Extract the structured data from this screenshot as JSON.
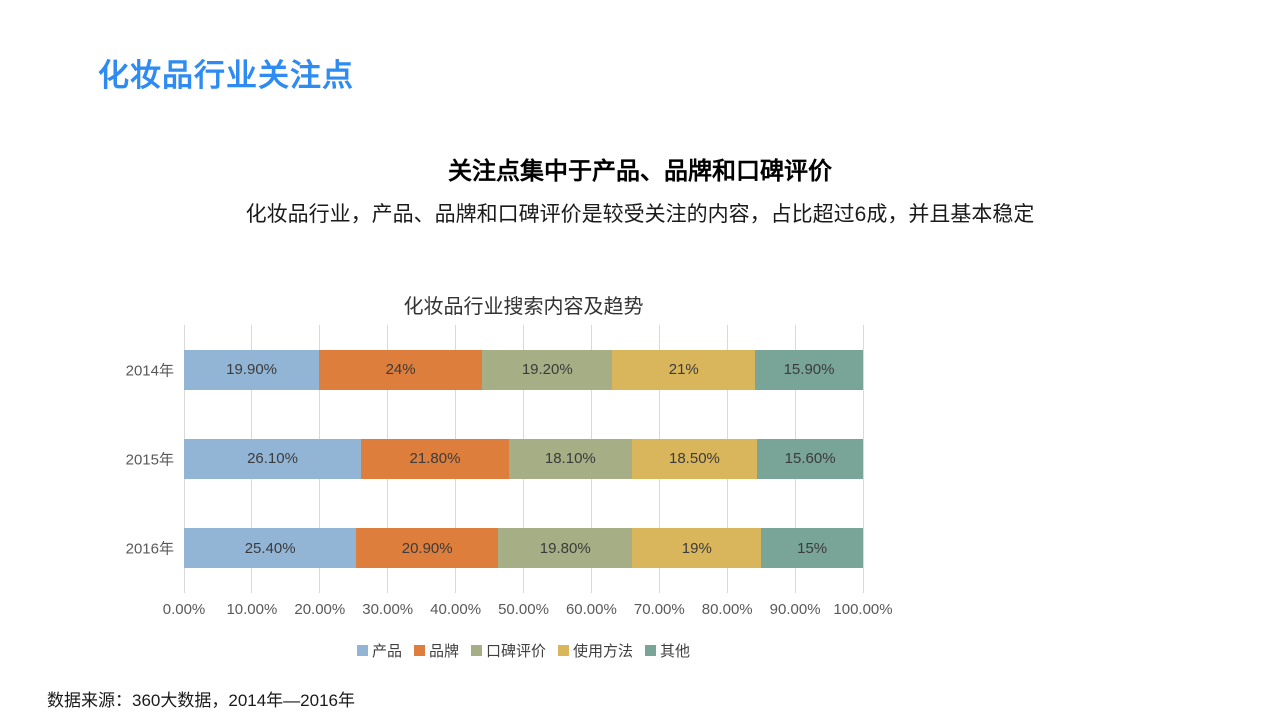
{
  "slide": {
    "title": "化妆品行业关注点",
    "heading": "关注点集中于产品、品牌和口碑评价",
    "subheading": "化妆品行业，产品、品牌和口碑评价是较受关注的内容，占比超过6成，并且基本稳定",
    "source_note": "数据来源：360大数据，2014年—2016年"
  },
  "colors": {
    "title_blue": "#2e8bf2",
    "gridline": "#d9d9d9",
    "axis_text": "#595959",
    "data_label_text": "#3b3b3b",
    "series": [
      "#93b5d5",
      "#de7e3c",
      "#a5ae84",
      "#d9b65c",
      "#79a498"
    ]
  },
  "chart_data": {
    "type": "bar",
    "orientation": "horizontal-stacked",
    "title": "化妆品行业搜索内容及趋势",
    "categories": [
      "2014年",
      "2015年",
      "2016年"
    ],
    "series": [
      {
        "name": "产品",
        "color": "#93b5d5",
        "values": [
          19.9,
          26.1,
          25.4
        ],
        "labels": [
          "19.90%",
          "26.10%",
          "25.40%"
        ]
      },
      {
        "name": "品牌",
        "color": "#de7e3c",
        "values": [
          24.0,
          21.8,
          20.9
        ],
        "labels": [
          "24%",
          "21.80%",
          "20.90%"
        ]
      },
      {
        "name": "口碑评价",
        "color": "#a5ae84",
        "values": [
          19.2,
          18.1,
          19.8
        ],
        "labels": [
          "19.20%",
          "18.10%",
          "19.80%"
        ]
      },
      {
        "name": "使用方法",
        "color": "#d9b65c",
        "values": [
          21.0,
          18.5,
          19.0
        ],
        "labels": [
          "21%",
          "18.50%",
          "19%"
        ]
      },
      {
        "name": "其他",
        "color": "#79a498",
        "values": [
          15.9,
          15.6,
          15.0
        ],
        "labels": [
          "15.90%",
          "15.60%",
          "15%"
        ]
      }
    ],
    "x_ticks": [
      "0.00%",
      "10.00%",
      "20.00%",
      "30.00%",
      "40.00%",
      "50.00%",
      "60.00%",
      "70.00%",
      "80.00%",
      "90.00%",
      "100.00%"
    ],
    "xlim": [
      0,
      100
    ],
    "grid": "vertical",
    "legend_position": "bottom"
  }
}
